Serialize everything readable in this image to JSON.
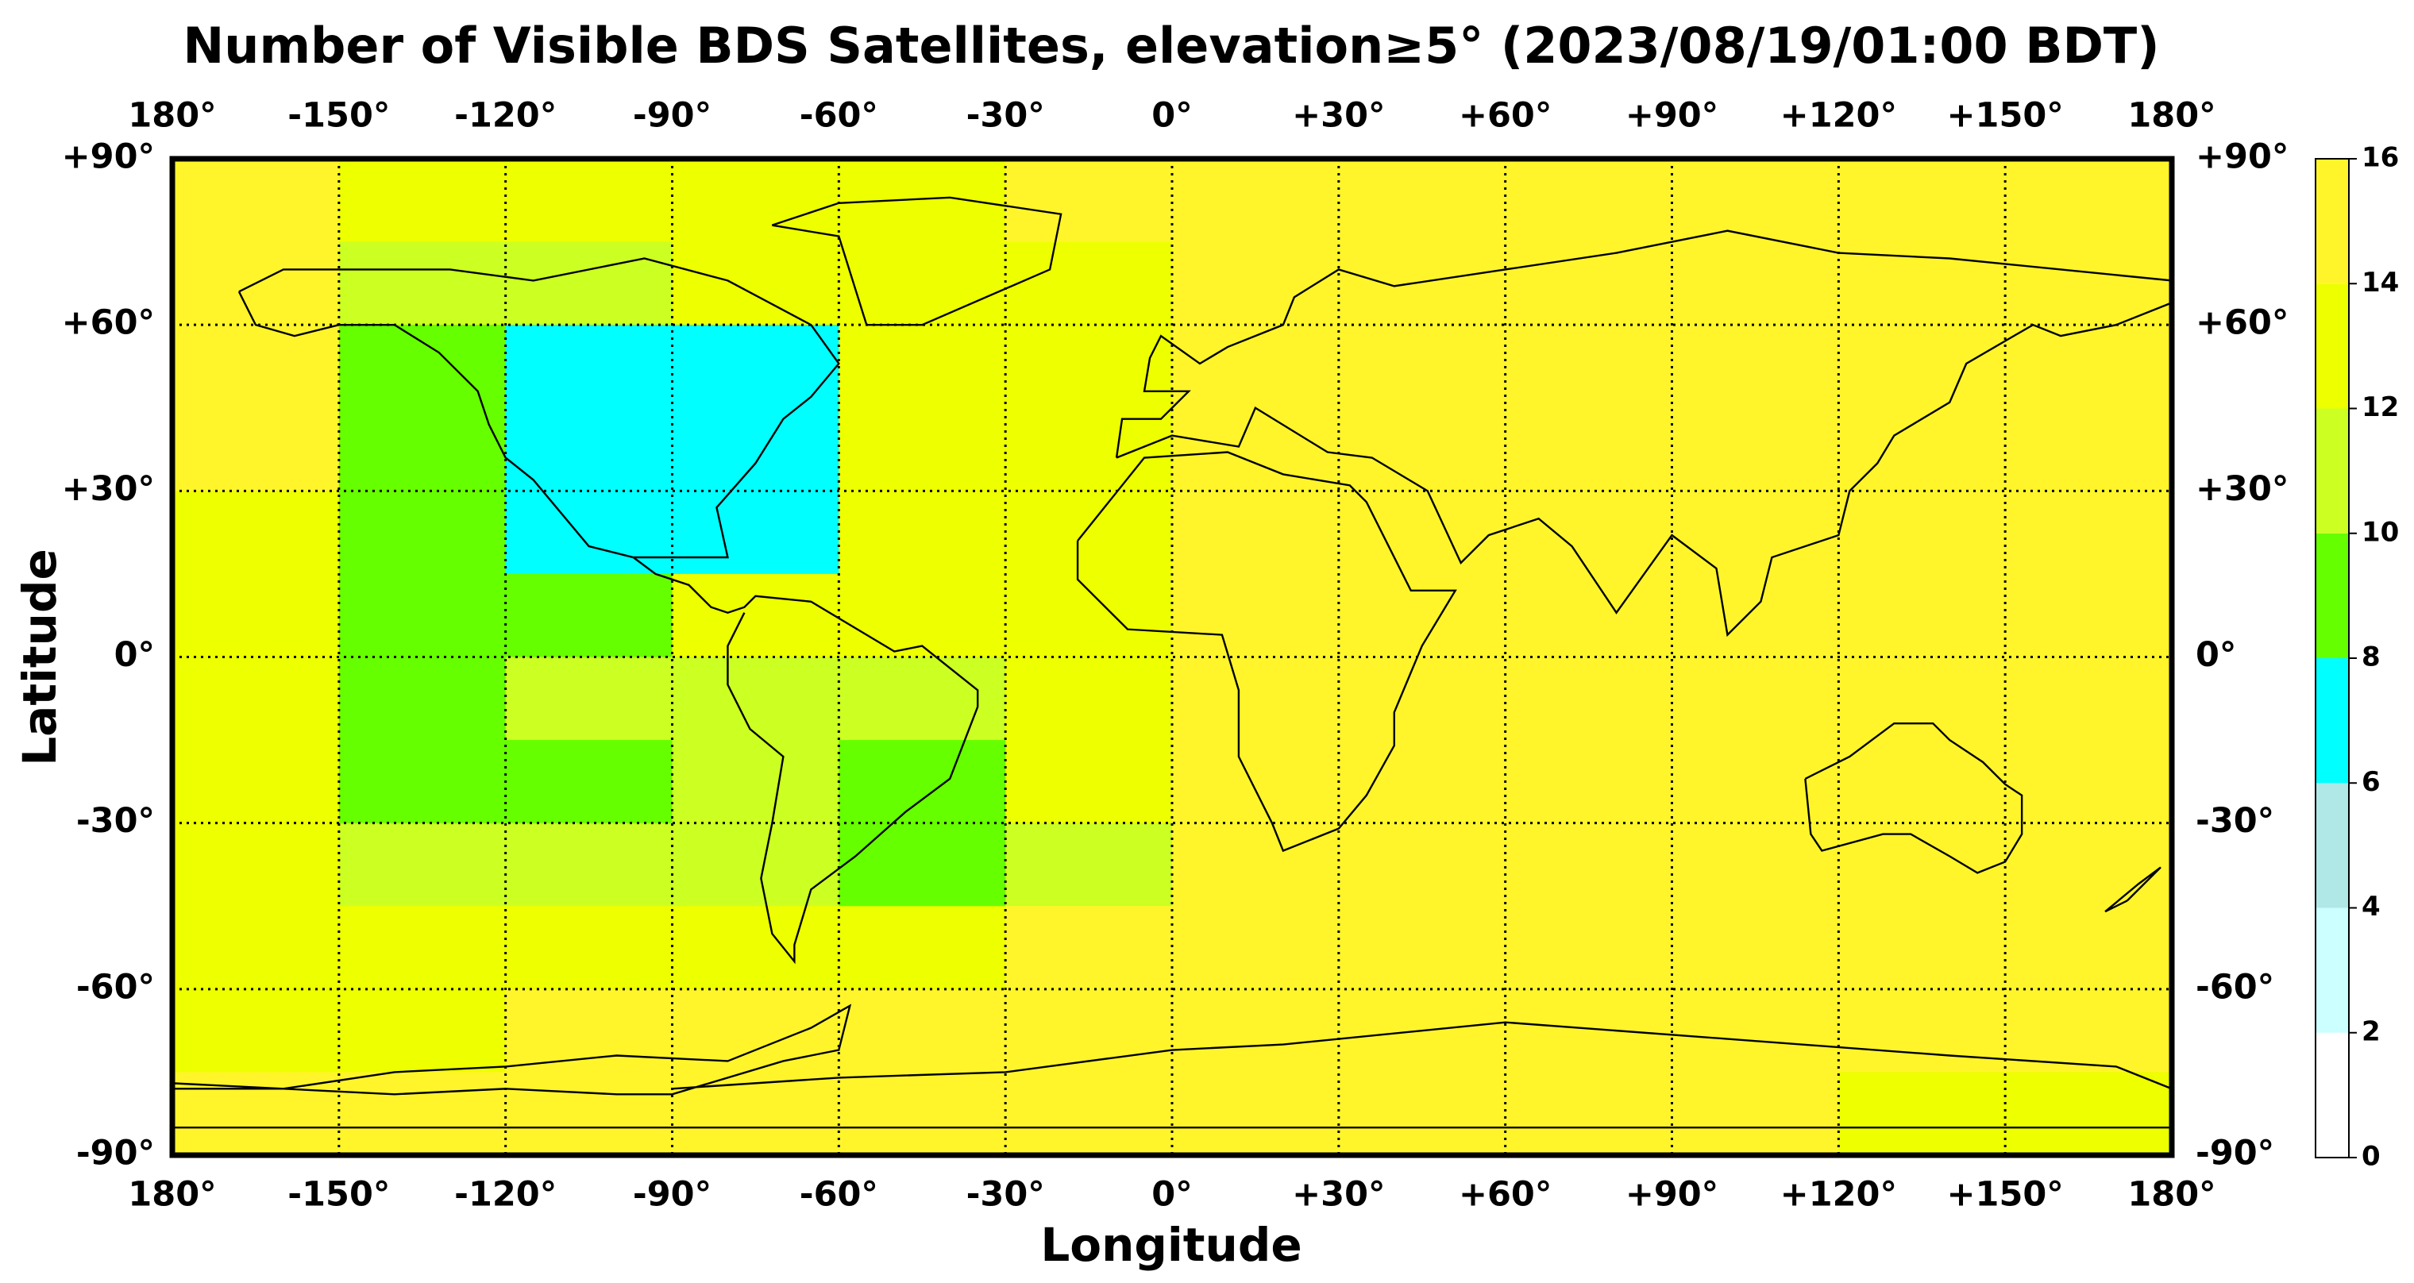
{
  "chart_data": {
    "type": "heatmap",
    "title": "Number of Visible BDS Satellites, elevation≥5° (2023/08/19/01:00 BDT)",
    "xlabel": "Longitude",
    "ylabel": "Latitude",
    "xlim": [
      -180,
      180
    ],
    "ylim": [
      -90,
      90
    ],
    "xticks": [
      {
        "value": -180,
        "label": "180°"
      },
      {
        "value": -150,
        "label": "-150°"
      },
      {
        "value": -120,
        "label": "-120°"
      },
      {
        "value": -90,
        "label": "-90°"
      },
      {
        "value": -60,
        "label": "-60°"
      },
      {
        "value": -30,
        "label": "-30°"
      },
      {
        "value": 0,
        "label": "0°"
      },
      {
        "value": 30,
        "label": "+30°"
      },
      {
        "value": 60,
        "label": "+60°"
      },
      {
        "value": 90,
        "label": "+90°"
      },
      {
        "value": 120,
        "label": "+120°"
      },
      {
        "value": 150,
        "label": "+150°"
      },
      {
        "value": 180,
        "label": "180°"
      }
    ],
    "yticks": [
      {
        "value": 90,
        "label": "+90°"
      },
      {
        "value": 60,
        "label": "+60°"
      },
      {
        "value": 30,
        "label": "+30°"
      },
      {
        "value": 0,
        "label": "0°"
      },
      {
        "value": -30,
        "label": "-30°"
      },
      {
        "value": -60,
        "label": "-60°"
      },
      {
        "value": -90,
        "label": "-90°"
      }
    ],
    "grid": true,
    "x": [
      -165,
      -135,
      -105,
      -75,
      -45,
      -15,
      15,
      45,
      75,
      105,
      135,
      165
    ],
    "y": [
      82.5,
      67.5,
      52.5,
      37.5,
      22.5,
      7.5,
      -7.5,
      -22.5,
      -37.5,
      -52.5,
      -67.5,
      -82.5
    ],
    "values": [
      [
        15,
        13,
        13,
        13,
        13,
        15,
        15,
        15,
        15,
        15,
        15,
        15
      ],
      [
        15,
        11,
        11,
        12,
        12,
        13,
        15,
        15,
        15,
        15,
        15,
        15
      ],
      [
        15,
        9,
        7,
        7,
        12,
        13,
        15,
        15,
        15,
        15,
        15,
        15
      ],
      [
        15,
        9,
        7,
        7,
        12,
        13,
        15,
        15,
        15,
        15,
        15,
        15
      ],
      [
        13,
        9,
        7,
        7,
        12,
        13,
        15,
        15,
        15,
        15,
        15,
        15
      ],
      [
        13,
        9,
        9,
        12,
        12,
        13,
        15,
        15,
        15,
        15,
        15,
        15
      ],
      [
        13,
        9,
        11,
        11,
        11,
        13,
        15,
        15,
        15,
        15,
        15,
        15
      ],
      [
        13,
        9,
        9,
        11,
        9,
        13,
        15,
        15,
        15,
        15,
        15,
        15
      ],
      [
        13,
        11,
        11,
        11,
        9,
        11,
        15,
        15,
        15,
        15,
        15,
        15
      ],
      [
        13,
        13,
        13,
        13,
        13,
        15,
        15,
        15,
        15,
        15,
        15,
        15
      ],
      [
        13,
        13,
        15,
        15,
        15,
        15,
        15,
        15,
        15,
        15,
        15,
        15
      ],
      [
        15,
        15,
        15,
        15,
        15,
        15,
        15,
        15,
        15,
        15,
        13,
        13
      ]
    ],
    "colorbar": {
      "levels": [
        0,
        2,
        4,
        6,
        8,
        10,
        12,
        14,
        16
      ],
      "colors": [
        "#ffffff",
        "#ccffff",
        "#b0e8e8",
        "#00ffff",
        "#66ff00",
        "#ccff22",
        "#eeff00",
        "#fff52a"
      ]
    }
  }
}
